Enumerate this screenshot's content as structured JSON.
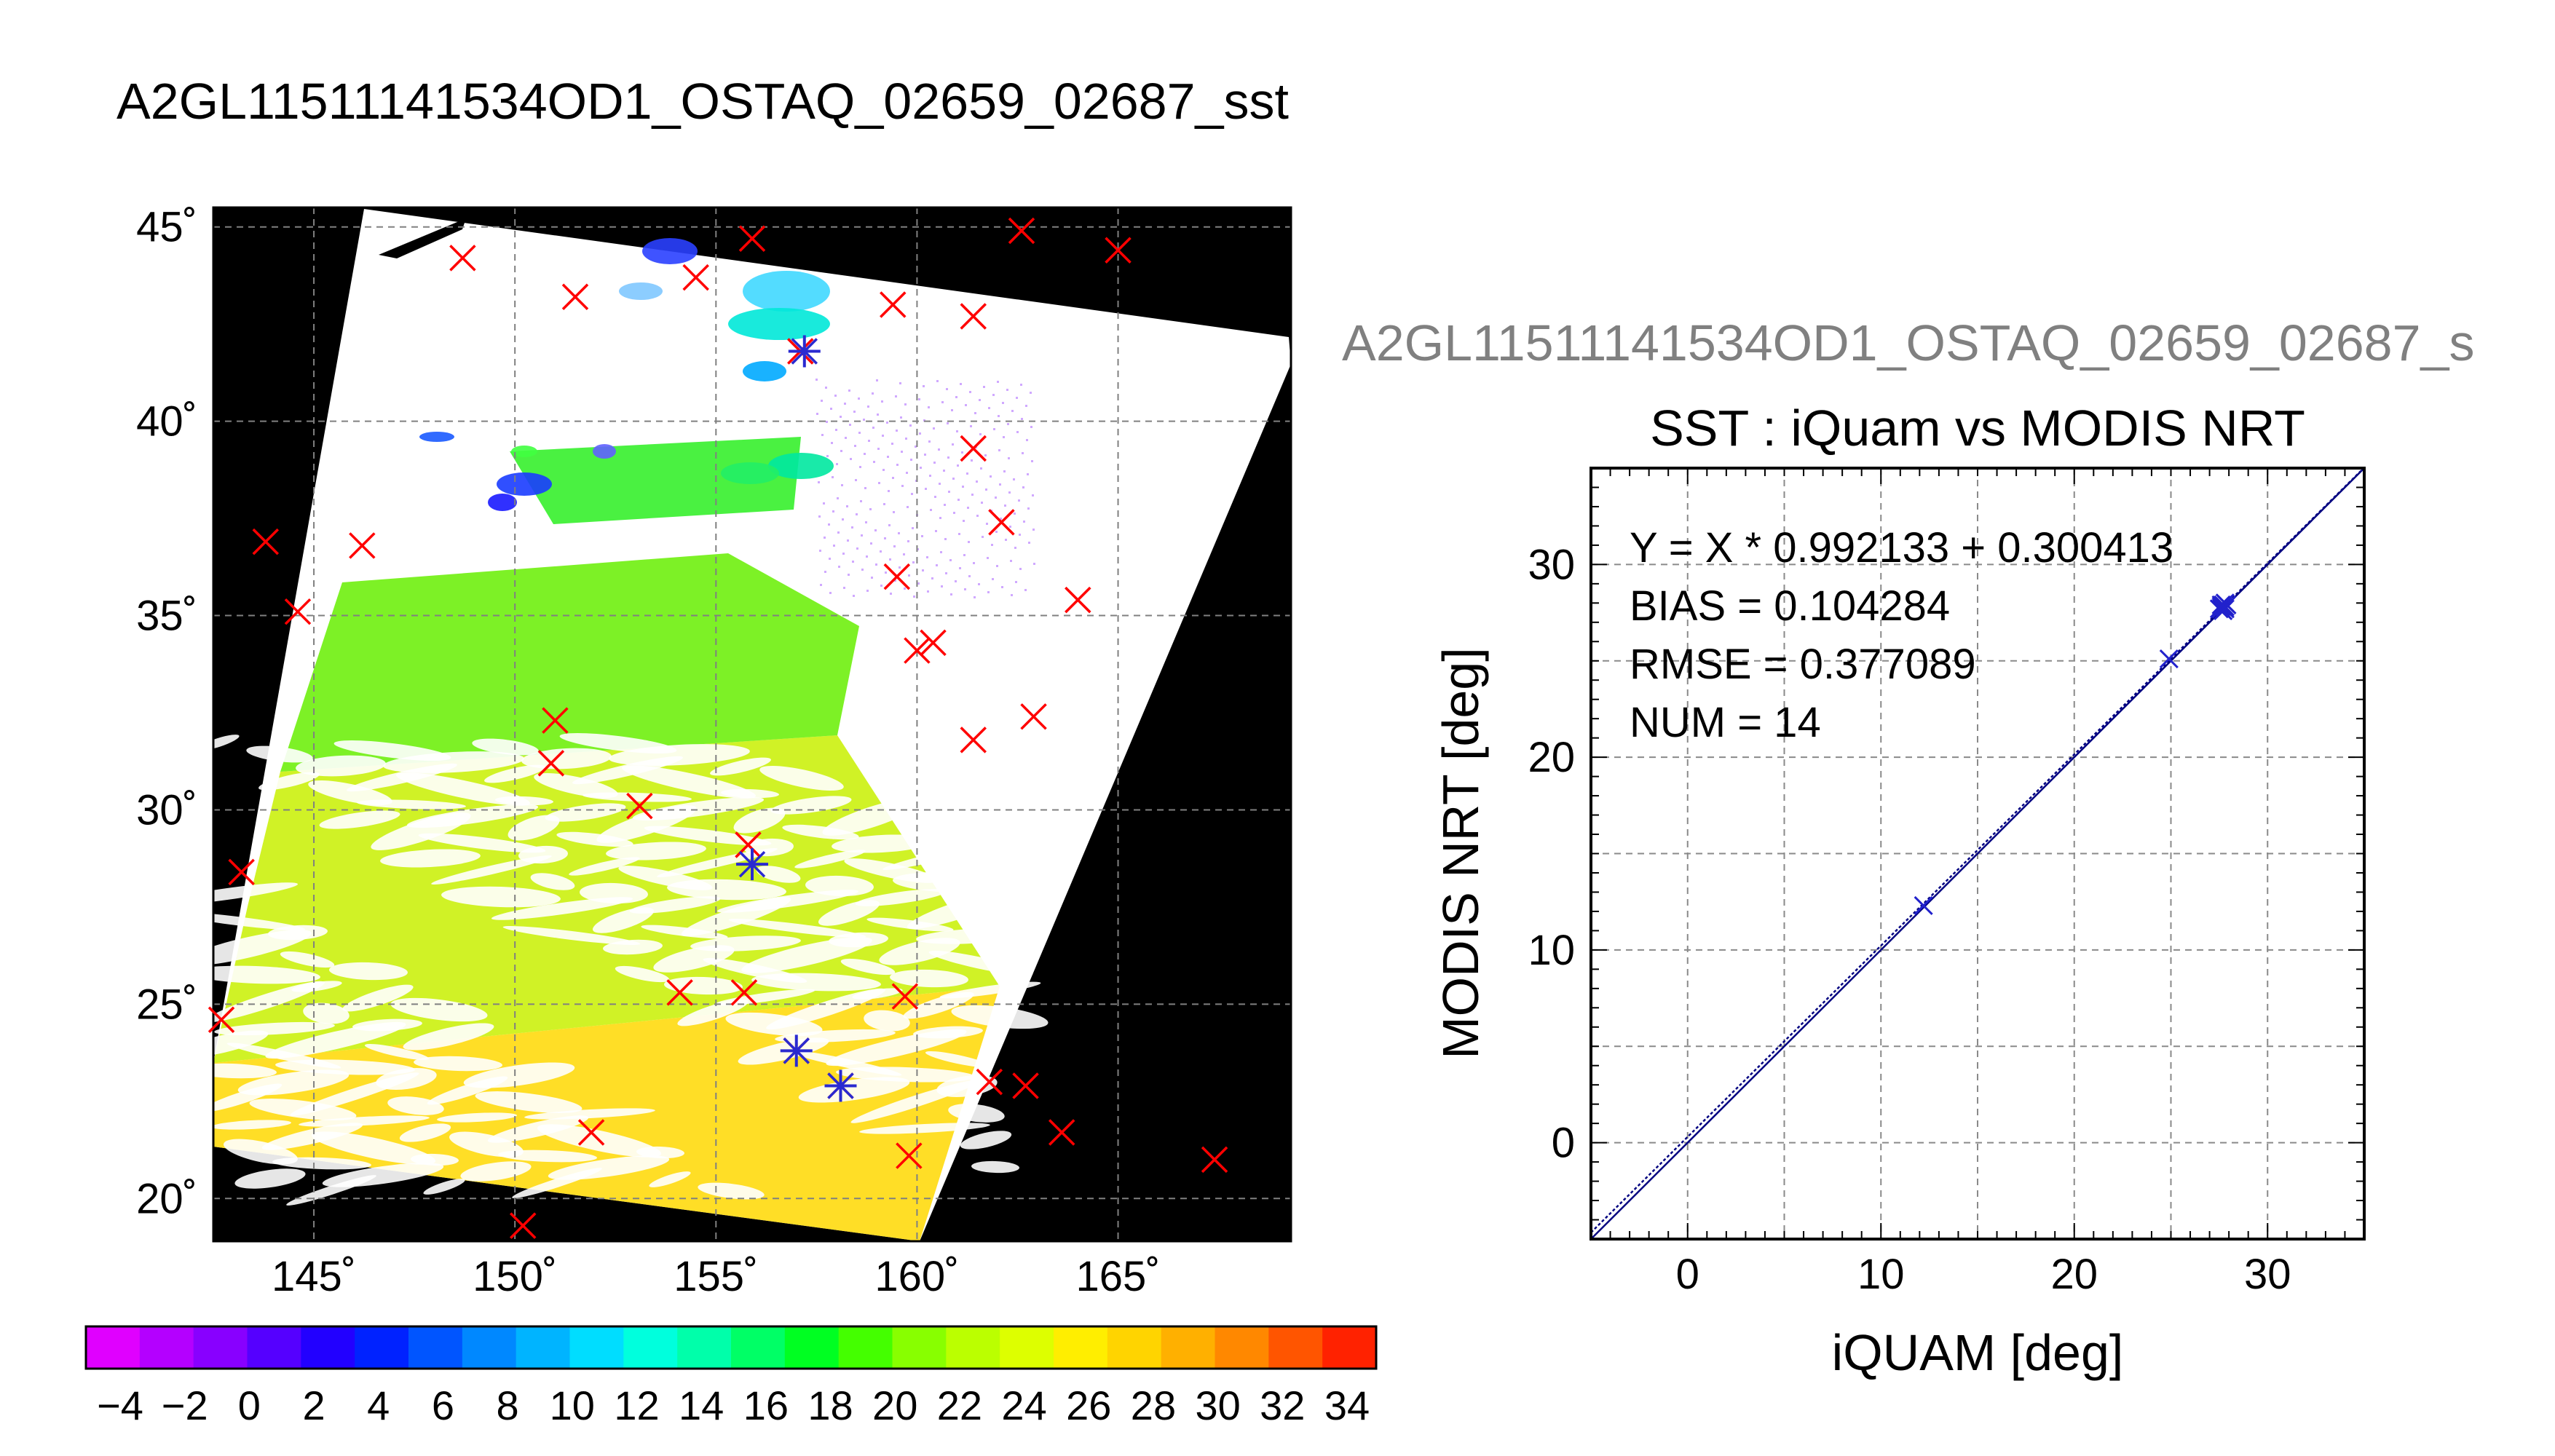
{
  "page": {
    "main_title": "A2GL11511141534OD1_OSTAQ_02659_02687_sst"
  },
  "chart_data": [
    {
      "type": "heatmap",
      "kind": "sst-map",
      "x_ticks": [
        "145˚",
        "150˚",
        "155˚",
        "160˚",
        "165˚"
      ],
      "x_tick_values": [
        145,
        150,
        155,
        160,
        165
      ],
      "y_ticks": [
        "20˚",
        "25˚",
        "30˚",
        "35˚",
        "40˚",
        "45˚"
      ],
      "y_tick_values": [
        20,
        25,
        30,
        35,
        40,
        45
      ],
      "xlim": [
        142.5,
        169.3
      ],
      "ylim": [
        18.9,
        45.5
      ],
      "grid": true,
      "colorbar": {
        "ticks": [
          "−4",
          "−2",
          "0",
          "2",
          "4",
          "6",
          "8",
          "10",
          "12",
          "14",
          "16",
          "18",
          "20",
          "22",
          "24",
          "26",
          "28",
          "30",
          "32",
          "34"
        ],
        "range": [
          -5,
          35
        ],
        "colors": [
          "#e000ff",
          "#b400ff",
          "#8800ff",
          "#5500ff",
          "#2200ff",
          "#0022ff",
          "#0055ff",
          "#0088ff",
          "#00b4ff",
          "#00ddff",
          "#00ffdd",
          "#00ffaa",
          "#00ff66",
          "#00ff22",
          "#44ff00",
          "#88ff00",
          "#bbff00",
          "#ddff00",
          "#ffee00",
          "#ffd400",
          "#ffb000",
          "#ff8800",
          "#ff5500",
          "#ff2200"
        ]
      },
      "marker_color_red": "#ff0000",
      "marker_color_blue": "#2a2ad0",
      "red_markers": [
        [
          148.7,
          44.2
        ],
        [
          151.5,
          43.2
        ],
        [
          154.5,
          43.7
        ],
        [
          155.9,
          44.7
        ],
        [
          159.4,
          43.0
        ],
        [
          161.4,
          42.7
        ],
        [
          162.6,
          44.9
        ],
        [
          165.0,
          44.4
        ],
        [
          157.1,
          41.8
        ],
        [
          161.4,
          39.3
        ],
        [
          162.1,
          37.4
        ],
        [
          143.8,
          36.9
        ],
        [
          146.2,
          36.8
        ],
        [
          144.6,
          35.1
        ],
        [
          159.5,
          36.0
        ],
        [
          164.0,
          35.4
        ],
        [
          160.4,
          34.3
        ],
        [
          160.0,
          34.1
        ],
        [
          151.0,
          32.3
        ],
        [
          162.9,
          32.4
        ],
        [
          161.4,
          31.8
        ],
        [
          150.9,
          31.2
        ],
        [
          153.1,
          30.1
        ],
        [
          155.8,
          29.1
        ],
        [
          143.2,
          28.4
        ],
        [
          154.1,
          25.3
        ],
        [
          155.7,
          25.3
        ],
        [
          159.7,
          25.2
        ],
        [
          142.7,
          24.6
        ],
        [
          157.0,
          23.8
        ],
        [
          158.1,
          22.9
        ],
        [
          161.8,
          23.0
        ],
        [
          162.7,
          22.9
        ],
        [
          151.9,
          21.7
        ],
        [
          163.6,
          21.7
        ],
        [
          159.8,
          21.1
        ],
        [
          167.4,
          21.0
        ],
        [
          150.2,
          19.3
        ]
      ],
      "blue_markers": [
        [
          157.2,
          41.8
        ],
        [
          155.9,
          28.6
        ],
        [
          157.0,
          23.8
        ],
        [
          158.1,
          22.9
        ]
      ]
    },
    {
      "type": "scatter",
      "title": "SST : iQuam vs MODIS NRT",
      "subtitle": "A2GL11511141534OD1_OSTAQ_02659_02687_s",
      "xlabel": "iQUAM [deg]",
      "ylabel": "MODIS NRT [deg]",
      "xlim": [
        -5,
        35
      ],
      "ylim": [
        -5,
        35
      ],
      "x_ticks": [
        "0",
        "10",
        "20",
        "30"
      ],
      "x_tick_values": [
        0,
        10,
        20,
        30
      ],
      "y_ticks": [
        "0",
        "10",
        "20",
        "30"
      ],
      "y_tick_values": [
        0,
        10,
        20,
        30
      ],
      "grid": true,
      "annotations": [
        "Y = X * 0.992133 + 0.300413",
        "BIAS = 0.104284",
        "RMSE = 0.377089",
        "NUM = 14"
      ],
      "fit": {
        "slope": 0.992133,
        "intercept": 0.300413
      },
      "points": [
        [
          12.2,
          12.3
        ],
        [
          24.9,
          25.1
        ],
        [
          27.6,
          27.7
        ],
        [
          27.7,
          27.9
        ],
        [
          27.8,
          27.8
        ],
        [
          27.6,
          27.9
        ],
        [
          27.7,
          27.6
        ],
        [
          27.8,
          28.0
        ],
        [
          27.5,
          27.7
        ],
        [
          27.9,
          27.9
        ],
        [
          27.7,
          27.8
        ],
        [
          27.6,
          27.8
        ],
        [
          27.8,
          27.7
        ],
        [
          27.7,
          27.9
        ]
      ],
      "point_color": "#2222cc",
      "line_color": "#000080"
    }
  ]
}
